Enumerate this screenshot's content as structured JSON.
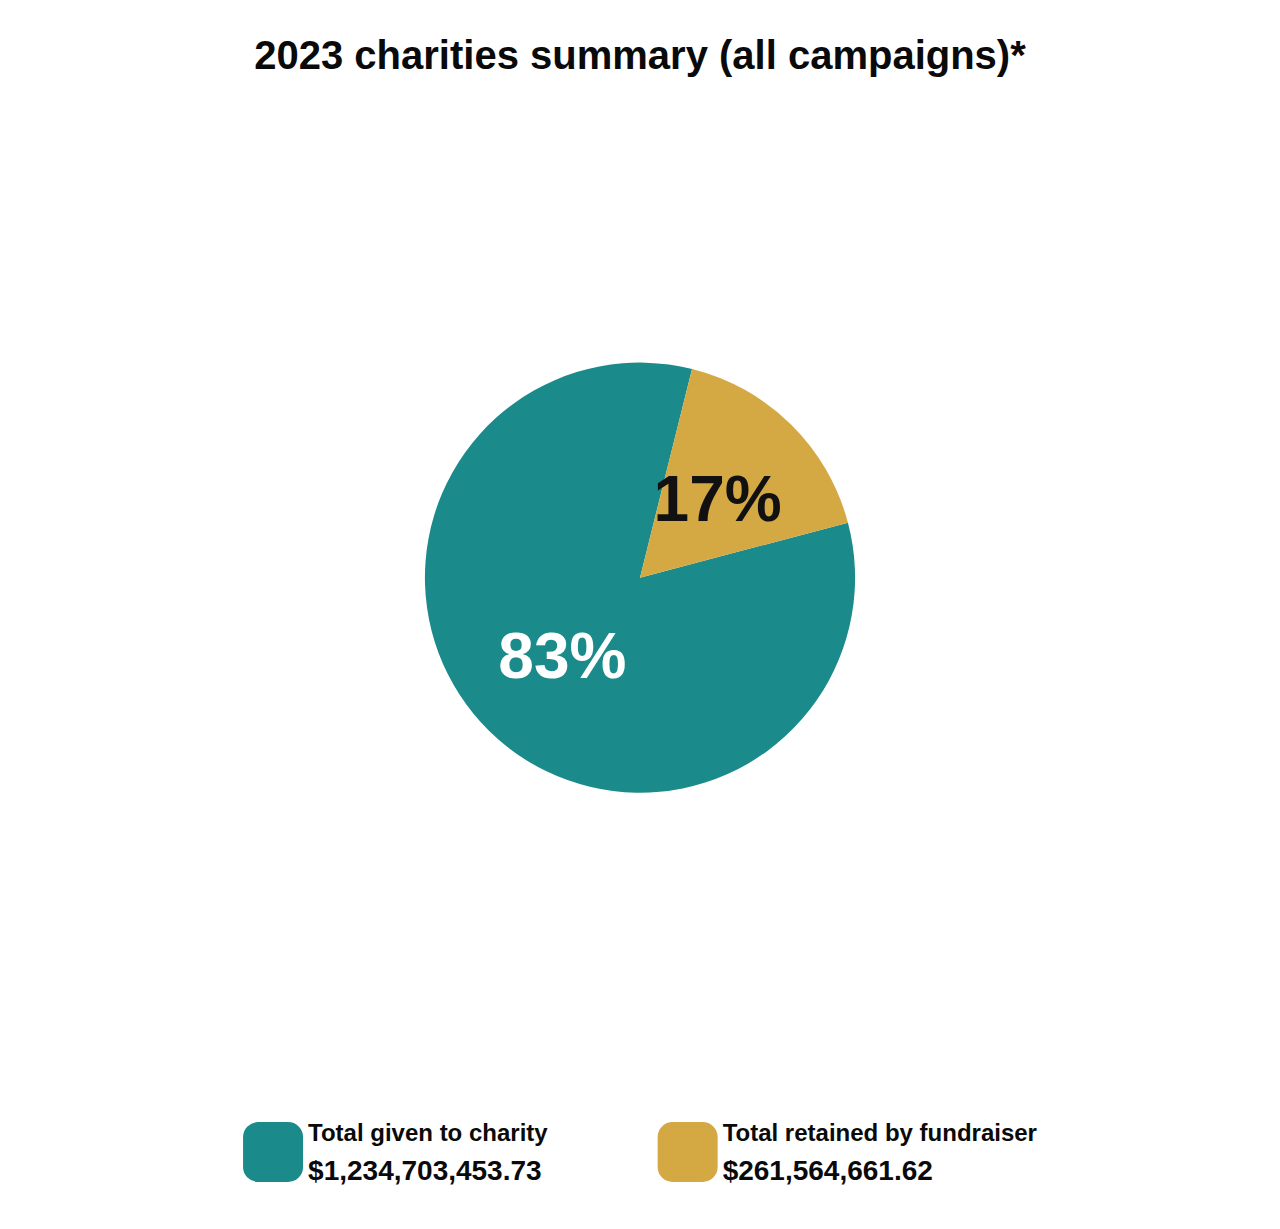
{
  "chart_data": {
    "type": "pie",
    "title": "2023 charities summary (all campaigns)*",
    "categories": [
      "Total given to charity",
      "Total retained by fundraiser"
    ],
    "values": [
      83,
      17
    ],
    "value_labels": [
      "83%",
      "17%"
    ],
    "data_labels": true,
    "colors": [
      "#1a8a8a",
      "#d4a843"
    ],
    "amounts": [
      {
        "value": 1234703453.73,
        "label": "$1,234,703,453.73"
      },
      {
        "value": 261564661.62,
        "label": "$261,564,661.62"
      }
    ],
    "legend": "bottom"
  }
}
